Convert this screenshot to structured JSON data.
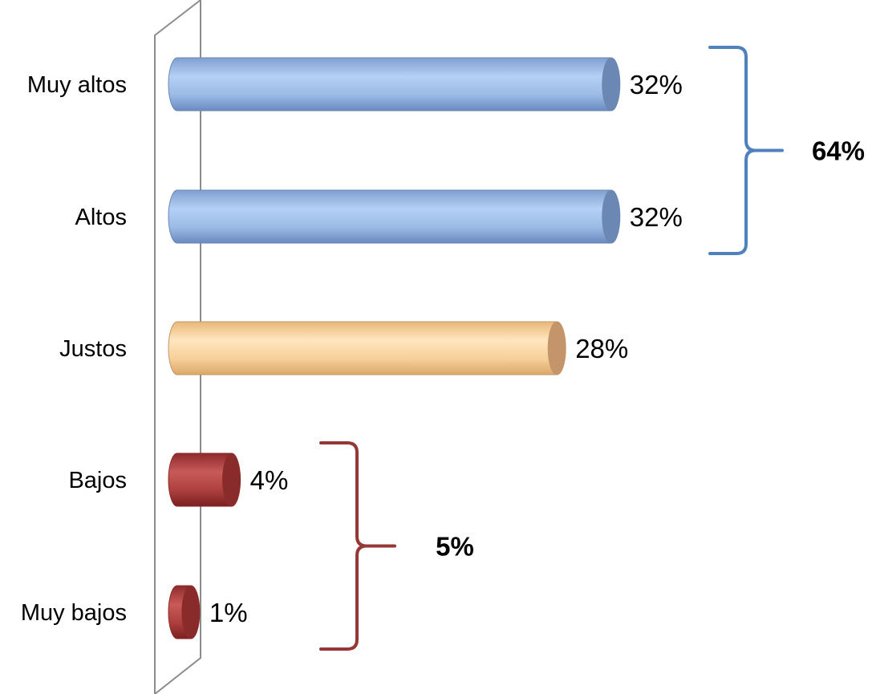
{
  "chart_data": {
    "type": "bar",
    "orientation": "horizontal",
    "style": "3d-cylinder",
    "categories": [
      "Muy altos",
      "Altos",
      "Justos",
      "Bajos",
      "Muy bajos"
    ],
    "values": [
      32,
      32,
      28,
      4,
      1
    ],
    "value_labels": [
      "32%",
      "32%",
      "28%",
      "4%",
      "1%"
    ],
    "colors": [
      "#9dbde8",
      "#9dbde8",
      "#fad7a3",
      "#b84a4a",
      "#b84a4a"
    ],
    "groups": [
      {
        "label": "64%",
        "categories": [
          "Muy altos",
          "Altos"
        ],
        "color": "#4f81bd"
      },
      {
        "label": "5%",
        "categories": [
          "Bajos",
          "Muy bajos"
        ],
        "color": "#953735"
      }
    ],
    "xlim": [
      0,
      32
    ],
    "grid": false,
    "legend": "none"
  }
}
